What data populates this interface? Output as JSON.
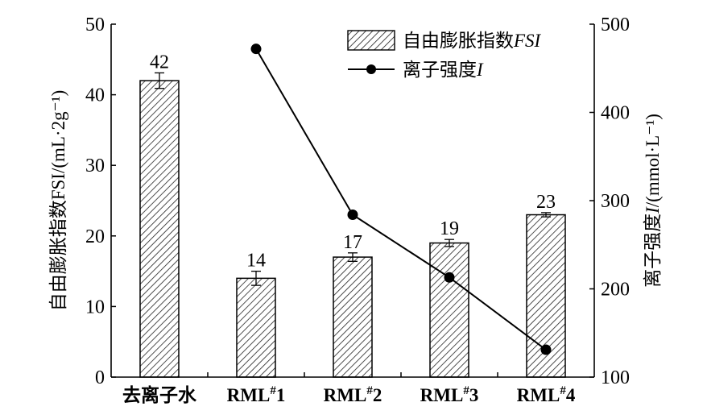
{
  "chart_data": {
    "type": "bar+line",
    "categories": [
      "去离子水",
      "RML#1",
      "RML#2",
      "RML#3",
      "RML#4"
    ],
    "category_parts": [
      {
        "base": "去离子水",
        "sup": "",
        "tail": ""
      },
      {
        "base": "RML",
        "sup": "#",
        "tail": "1"
      },
      {
        "base": "RML",
        "sup": "#",
        "tail": "2"
      },
      {
        "base": "RML",
        "sup": "#",
        "tail": "3"
      },
      {
        "base": "RML",
        "sup": "#",
        "tail": "4"
      }
    ],
    "series": [
      {
        "name": "自由膨胀指数FSI",
        "name_parts": {
          "plain": "自由膨胀指数",
          "italic": "FSI"
        },
        "kind": "bar",
        "axis": "left",
        "values": [
          42,
          14,
          17,
          19,
          23
        ],
        "errors": [
          1.1,
          1.0,
          0.6,
          0.5,
          0.3
        ],
        "data_labels": [
          "42",
          "14",
          "17",
          "19",
          "23"
        ]
      },
      {
        "name": "离子强度I",
        "name_parts": {
          "plain": "离子强度",
          "italic": "I"
        },
        "kind": "line",
        "axis": "right",
        "values": [
          null,
          472,
          284,
          213,
          131
        ]
      }
    ],
    "y_left": {
      "label": "自由膨胀指数FSI/(mL·2g⁻¹)",
      "min": 0,
      "max": 50,
      "ticks": [
        0,
        10,
        20,
        30,
        40,
        50
      ]
    },
    "y_right": {
      "label": "离子强度I/(mmol·L⁻¹)",
      "label_parts": {
        "plain": "离子强度",
        "italic": "I",
        "unit": "/(mmol·L⁻¹)"
      },
      "min": 100,
      "max": 500,
      "ticks": [
        100,
        200,
        300,
        400,
        500
      ]
    },
    "grid": false,
    "legend_position": "top-right"
  }
}
